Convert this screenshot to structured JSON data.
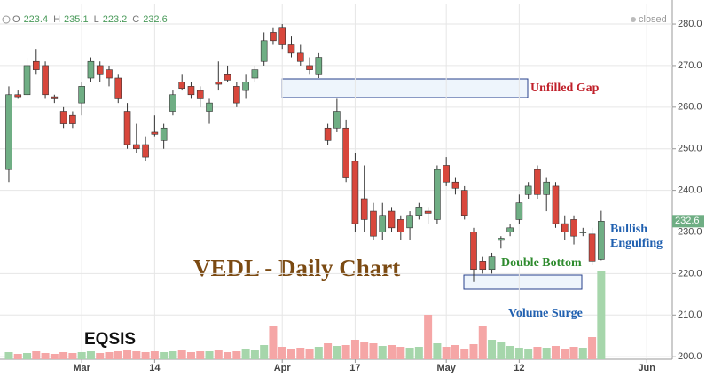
{
  "chart_data": {
    "type": "candlestick",
    "title": "VEDL - Daily Chart",
    "watermark": "EQSIS",
    "status": "closed",
    "ohlc_header": [
      {
        "label": "O",
        "value": 223.4
      },
      {
        "label": "H",
        "value": 235.1
      },
      {
        "label": "L",
        "value": 223.2
      },
      {
        "label": "C",
        "value": 232.6
      }
    ],
    "annotations": [
      "Unfilled Gap",
      "Double Bottom",
      "Bullish",
      "Engulfing",
      "Volume Surge"
    ],
    "categories": [
      null,
      null,
      null,
      null,
      null,
      null,
      null,
      null,
      null,
      null,
      null,
      null,
      null,
      null,
      null,
      null,
      null,
      null,
      null,
      null,
      null,
      null,
      null,
      null,
      null,
      null,
      null,
      null,
      null,
      null,
      null,
      null,
      null,
      null,
      null,
      null,
      null,
      null,
      null,
      null,
      null,
      null,
      null,
      null,
      null,
      null,
      null,
      null,
      null,
      null,
      null,
      null,
      null,
      null,
      null,
      null,
      null,
      null,
      null,
      null,
      null,
      null,
      null,
      null,
      null,
      null
    ],
    "open": [
      245,
      263,
      263,
      271,
      270,
      262.5,
      259,
      258,
      261,
      267,
      270,
      269,
      267,
      259,
      251,
      251,
      254,
      252,
      259,
      266,
      265,
      264,
      259,
      266,
      268,
      265,
      264,
      267,
      271,
      278,
      279,
      275,
      273,
      270,
      268,
      255,
      255,
      255,
      247,
      238,
      235,
      230,
      235,
      233,
      231,
      234,
      235,
      233,
      246,
      242,
      240,
      230,
      223,
      221,
      228,
      230,
      233,
      239,
      245,
      239,
      241,
      232,
      233,
      230,
      229.5,
      223.4
    ],
    "high": [
      265,
      264,
      272,
      274,
      271,
      263,
      260,
      259,
      266,
      272,
      271,
      270,
      268,
      261,
      256,
      253,
      258,
      256,
      264,
      268,
      266,
      265,
      262,
      271,
      270,
      266,
      268,
      270,
      278,
      279,
      280,
      277,
      275,
      272,
      273,
      256,
      262,
      257,
      249,
      246,
      237,
      237,
      236,
      234,
      235,
      237,
      236,
      246,
      248,
      243,
      241,
      231,
      224,
      225,
      229,
      232,
      239,
      242,
      246,
      243,
      242,
      234,
      234,
      231,
      231,
      235.1
    ],
    "low": [
      242,
      262,
      262,
      268,
      262,
      261,
      255,
      255,
      258,
      266,
      266,
      265,
      261,
      250,
      249,
      247,
      253,
      250,
      258,
      264,
      262,
      260,
      256,
      264,
      266,
      260,
      262,
      266,
      270,
      275,
      274,
      272,
      270,
      268,
      267,
      251,
      254,
      242,
      230,
      230,
      228,
      228,
      230,
      228,
      228,
      233,
      232,
      232,
      241,
      239,
      233,
      218,
      220,
      220,
      226,
      229,
      232,
      238,
      238,
      235,
      231,
      228,
      227,
      229,
      222,
      223.2
    ],
    "close": [
      263,
      262.5,
      270,
      269,
      263,
      262,
      256,
      256,
      265,
      271,
      268,
      267,
      262,
      251,
      250,
      248,
      253.5,
      255,
      263,
      264.5,
      263,
      262,
      261,
      265.5,
      266.5,
      261,
      266,
      269,
      276,
      276,
      275,
      273,
      271,
      269,
      272,
      252,
      259,
      243,
      232,
      233,
      229,
      234,
      231,
      230,
      234,
      236,
      234.5,
      245,
      242,
      240.5,
      234,
      221,
      221,
      224,
      228.5,
      231,
      237,
      241,
      239,
      242,
      232,
      230,
      229,
      230,
      223,
      232.6
    ],
    "volume": [
      8,
      6,
      7,
      9,
      7,
      6,
      8,
      7,
      8,
      9,
      7,
      8,
      9,
      10,
      9,
      8,
      9,
      8,
      9,
      10,
      8,
      9,
      9,
      10,
      8,
      9,
      12,
      11,
      16,
      38,
      14,
      12,
      13,
      12,
      14,
      18,
      15,
      16,
      22,
      20,
      18,
      15,
      16,
      14,
      13,
      14,
      50,
      18,
      14,
      16,
      12,
      17,
      38,
      22,
      20,
      15,
      13,
      12,
      14,
      13,
      15,
      12,
      14,
      13,
      25,
      99
    ],
    "up_color": "#6fae84",
    "down_color": "#d8473c",
    "volume_up_color": "#a6d6ab",
    "volume_down_color": "#f5a6a6",
    "ylim": [
      199.4,
      284.7
    ],
    "yticks": [
      {
        "value": 200,
        "label": "200.0"
      },
      {
        "value": 210,
        "label": "210.0"
      },
      {
        "value": 220,
        "label": "220.0"
      },
      {
        "value": 230,
        "label": "230.0"
      },
      {
        "value": 240,
        "label": "240.0"
      },
      {
        "value": 250,
        "label": "250.0"
      },
      {
        "value": 260,
        "label": "260.0"
      },
      {
        "value": 270,
        "label": "270.0"
      },
      {
        "value": 280,
        "label": "280.0"
      }
    ],
    "xlim": [
      -0.97,
      72.8
    ],
    "xticks": [
      {
        "value": 8,
        "label": "Mar"
      },
      {
        "value": 16,
        "label": "14"
      },
      {
        "value": 30,
        "label": "Apr"
      },
      {
        "value": 38,
        "label": "17"
      },
      {
        "value": 48,
        "label": "May"
      },
      {
        "value": 56,
        "label": "12"
      },
      {
        "value": 70,
        "label": "Jun"
      }
    ],
    "y2lim": [
      0,
      400
    ],
    "grid": true
  }
}
